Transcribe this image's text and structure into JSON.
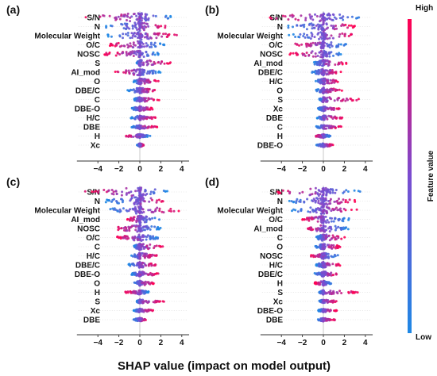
{
  "chart_data": {
    "type": "scatter",
    "xlabel": "SHAP value (impact on model output)",
    "colorbar": {
      "title": "Feature value",
      "high": "High",
      "low": "Low",
      "colors": [
        "#1e88e5",
        "#7a4cd0",
        "#ff0052"
      ]
    },
    "xlim": [
      -6,
      4.7
    ],
    "xticks": [
      -4,
      -2,
      0,
      2,
      4
    ],
    "panels": [
      {
        "label": "(a)",
        "features": [
          "S/N",
          "N",
          "Molecular Weight",
          "O/C",
          "NOSC",
          "S",
          "AI_mod",
          "O",
          "DBE/C",
          "C",
          "DBE-O",
          "H/C",
          "DBE",
          "H",
          "Xc"
        ],
        "ranges": [
          [
            -5.7,
            3.2
          ],
          [
            -3.6,
            2.6
          ],
          [
            -3.2,
            3.7
          ],
          [
            -2.9,
            2.4
          ],
          [
            -3.4,
            1.8
          ],
          [
            -0.3,
            3.2
          ],
          [
            -2.4,
            2.0
          ],
          [
            -0.6,
            2.0
          ],
          [
            -1.3,
            1.6
          ],
          [
            -0.6,
            1.9
          ],
          [
            -0.8,
            1.3
          ],
          [
            -0.9,
            1.5
          ],
          [
            -0.8,
            1.7
          ],
          [
            -1.5,
            1.0
          ],
          [
            -0.3,
            0.4
          ]
        ],
        "polarity": [
          -1,
          1,
          1,
          -1,
          -1,
          1,
          -1,
          1,
          1,
          1,
          1,
          1,
          1,
          -1,
          1
        ]
      },
      {
        "label": "(b)",
        "features": [
          "S/N",
          "N",
          "Molecular Weight",
          "O/C",
          "NOSC",
          "AI_mod",
          "DBE/C",
          "H/C",
          "O",
          "S",
          "Xc",
          "DBE",
          "C",
          "H",
          "DBE-O"
        ],
        "ranges": [
          [
            -5.6,
            3.5
          ],
          [
            -3.6,
            3.0
          ],
          [
            -3.3,
            3.2
          ],
          [
            -3.0,
            2.2
          ],
          [
            -3.3,
            1.7
          ],
          [
            -1.0,
            2.2
          ],
          [
            -1.1,
            1.8
          ],
          [
            -0.8,
            1.5
          ],
          [
            -0.7,
            1.9
          ],
          [
            -0.4,
            3.4
          ],
          [
            -0.5,
            1.6
          ],
          [
            -0.6,
            1.8
          ],
          [
            -0.7,
            1.7
          ],
          [
            -0.9,
            0.7
          ],
          [
            -0.7,
            1.0
          ]
        ],
        "polarity": [
          -1,
          1,
          1,
          -1,
          -1,
          1,
          1,
          1,
          1,
          1,
          1,
          1,
          1,
          -1,
          1
        ]
      },
      {
        "label": "(c)",
        "features": [
          "S/N",
          "N",
          "Molecular Weight",
          "AI_mod",
          "NOSC",
          "O/C",
          "C",
          "H/C",
          "DBE/C",
          "DBE-O",
          "O",
          "H",
          "S",
          "Xc",
          "DBE"
        ],
        "ranges": [
          [
            -5.6,
            2.8
          ],
          [
            -3.4,
            2.4
          ],
          [
            -3.3,
            3.8
          ],
          [
            -1.2,
            1.9
          ],
          [
            -2.6,
            2.0
          ],
          [
            -2.4,
            1.9
          ],
          [
            -0.6,
            2.2
          ],
          [
            -0.8,
            1.7
          ],
          [
            -1.2,
            1.5
          ],
          [
            -0.8,
            1.8
          ],
          [
            -0.6,
            1.4
          ],
          [
            -1.4,
            0.9
          ],
          [
            -0.3,
            2.4
          ],
          [
            -0.6,
            1.3
          ],
          [
            -0.6,
            0.6
          ]
        ],
        "polarity": [
          -1,
          1,
          1,
          -1,
          -1,
          -1,
          1,
          1,
          1,
          1,
          1,
          -1,
          1,
          1,
          1
        ]
      },
      {
        "label": "(d)",
        "features": [
          "S/N",
          "N",
          "Molecular Weight",
          "O/C",
          "AI_mod",
          "C",
          "O",
          "NOSC",
          "H/C",
          "DBE/C",
          "H",
          "S",
          "Xc",
          "DBE-O",
          "DBE"
        ],
        "ranges": [
          [
            -4.8,
            3.5
          ],
          [
            -3.3,
            3.1
          ],
          [
            -3.0,
            3.2
          ],
          [
            -2.0,
            2.6
          ],
          [
            -1.6,
            2.4
          ],
          [
            -0.7,
            2.1
          ],
          [
            -0.8,
            1.8
          ],
          [
            -1.2,
            1.5
          ],
          [
            -0.7,
            1.6
          ],
          [
            -0.9,
            1.5
          ],
          [
            -0.9,
            0.8
          ],
          [
            -0.4,
            3.3
          ],
          [
            -0.4,
            1.3
          ],
          [
            -0.5,
            1.3
          ],
          [
            -0.6,
            1.2
          ]
        ],
        "polarity": [
          -1,
          1,
          1,
          -1,
          -1,
          1,
          1,
          -1,
          1,
          1,
          -1,
          1,
          1,
          1,
          1
        ]
      }
    ]
  }
}
